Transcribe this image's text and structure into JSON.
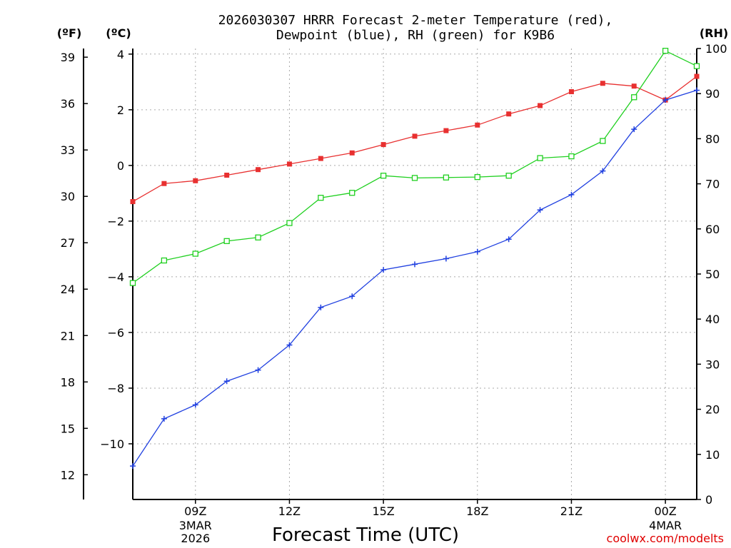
{
  "chart_data": {
    "type": "line",
    "title_line1": "2026030307 HRRR Forecast 2-meter Temperature (red),",
    "title_line2": "Dewpoint (blue), RH (green) for K9B6",
    "units": {
      "fahrenheit": "(ºF)",
      "celsius": "(ºC)",
      "rh": "(RH)"
    },
    "xlabel": "Forecast Time (UTC)",
    "credit": "coolwx.com/modelts",
    "x_hours": [
      7,
      8,
      9,
      10,
      11,
      12,
      13,
      14,
      15,
      16,
      17,
      18,
      19,
      20,
      21,
      22,
      23,
      24,
      25
    ],
    "xlim": [
      7,
      25
    ],
    "x_ticks": [
      {
        "hour": 9,
        "label": "09Z",
        "sub1": "3MAR",
        "sub2": "2026"
      },
      {
        "hour": 12,
        "label": "12Z"
      },
      {
        "hour": 15,
        "label": "15Z"
      },
      {
        "hour": 18,
        "label": "18Z"
      },
      {
        "hour": 21,
        "label": "21Z"
      },
      {
        "hour": 24,
        "label": "00Z",
        "sub1": "4MAR"
      }
    ],
    "celsius_axis": {
      "range": [
        -12,
        4.2
      ],
      "ticks": [
        4,
        2,
        0,
        -2,
        -4,
        -6,
        -8,
        -10
      ],
      "labels": [
        "4",
        "2",
        "0",
        "−2",
        "−4",
        "−6",
        "−8",
        "−10"
      ]
    },
    "fahrenheit_axis": {
      "ticks": [
        39,
        36,
        33,
        30,
        27,
        24,
        21,
        18,
        15,
        12
      ],
      "labels": [
        "39",
        "36",
        "33",
        "30",
        "27",
        "24",
        "21",
        "18",
        "15",
        "12"
      ]
    },
    "rh_axis": {
      "range": [
        0,
        100
      ],
      "ticks": [
        100,
        90,
        80,
        70,
        60,
        50,
        40,
        30,
        20,
        10,
        0
      ],
      "labels": [
        "100",
        "90",
        "80",
        "70",
        "60",
        "50",
        "40",
        "30",
        "20",
        "10",
        "0"
      ]
    },
    "series": [
      {
        "name": "Temperature",
        "axis": "celsius",
        "color": "#e83030",
        "marker": "filled-square",
        "values": [
          -1.3,
          -0.65,
          -0.55,
          -0.35,
          -0.15,
          0.05,
          0.25,
          0.45,
          0.75,
          1.05,
          1.25,
          1.45,
          1.85,
          2.15,
          2.65,
          2.95,
          2.85,
          2.35,
          3.2
        ]
      },
      {
        "name": "Dewpoint",
        "axis": "celsius",
        "color": "#2040e0",
        "marker": "plus",
        "values": [
          -10.8,
          -9.1,
          -8.6,
          -7.75,
          -7.35,
          -6.45,
          -5.1,
          -4.7,
          -3.75,
          -3.55,
          -3.35,
          -3.1,
          -2.65,
          -1.6,
          -1.05,
          -0.2,
          1.3,
          2.35,
          2.7
        ]
      },
      {
        "name": "RH",
        "axis": "rh",
        "color": "#20d020",
        "marker": "open-square",
        "values": [
          48,
          53,
          54.5,
          57.3,
          58.1,
          61.3,
          66.9,
          68,
          71.8,
          71.3,
          71.4,
          71.5,
          71.8,
          75.7,
          76.1,
          79.5,
          89.2,
          99.5,
          96.1
        ]
      }
    ]
  }
}
